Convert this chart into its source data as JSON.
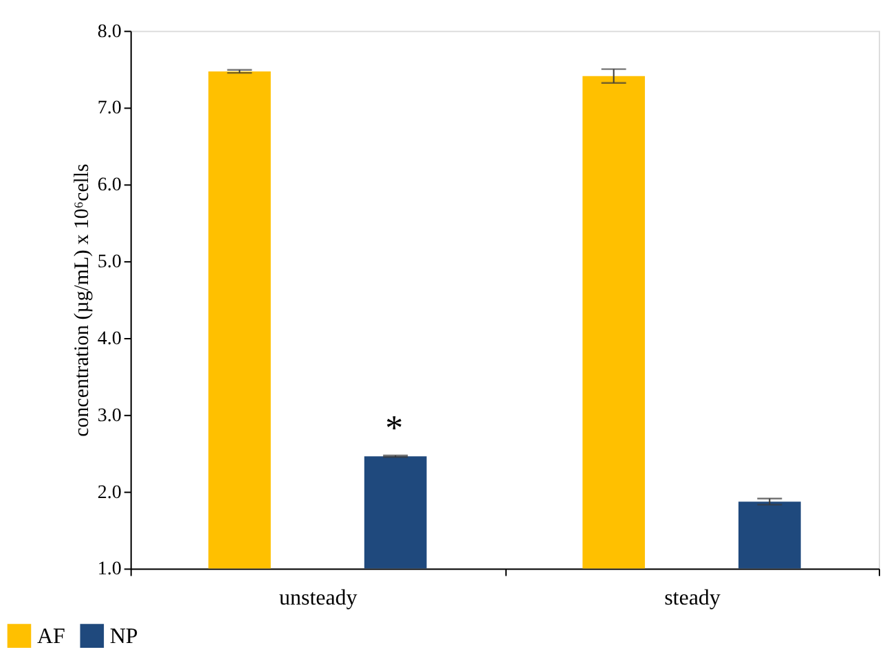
{
  "chart_data": {
    "type": "bar",
    "ylabel": "concentration (µg/mL) x 10⁶cells",
    "categories": [
      "unsteady",
      "steady"
    ],
    "series": [
      {
        "name": "AF",
        "color": "#ffc000",
        "values": [
          7.47,
          7.41
        ],
        "errors": [
          0.02,
          0.09
        ]
      },
      {
        "name": "NP",
        "color": "#1f497d",
        "values": [
          2.46,
          1.87
        ],
        "errors": [
          0.01,
          0.04
        ]
      }
    ],
    "ylim": [
      1.0,
      8.0
    ],
    "yticks": [
      {
        "value": 1,
        "label": "1.0"
      },
      {
        "value": 2,
        "label": "2.0"
      },
      {
        "value": 3,
        "label": "3.0"
      },
      {
        "value": 4,
        "label": "4.0"
      },
      {
        "value": 5,
        "label": "5.0"
      },
      {
        "value": 6,
        "label": "6.0"
      },
      {
        "value": 7,
        "label": "7.0"
      },
      {
        "value": 8,
        "label": "8.0"
      }
    ],
    "annotations": [
      "*"
    ],
    "grid": false,
    "legend": "bottom left"
  }
}
